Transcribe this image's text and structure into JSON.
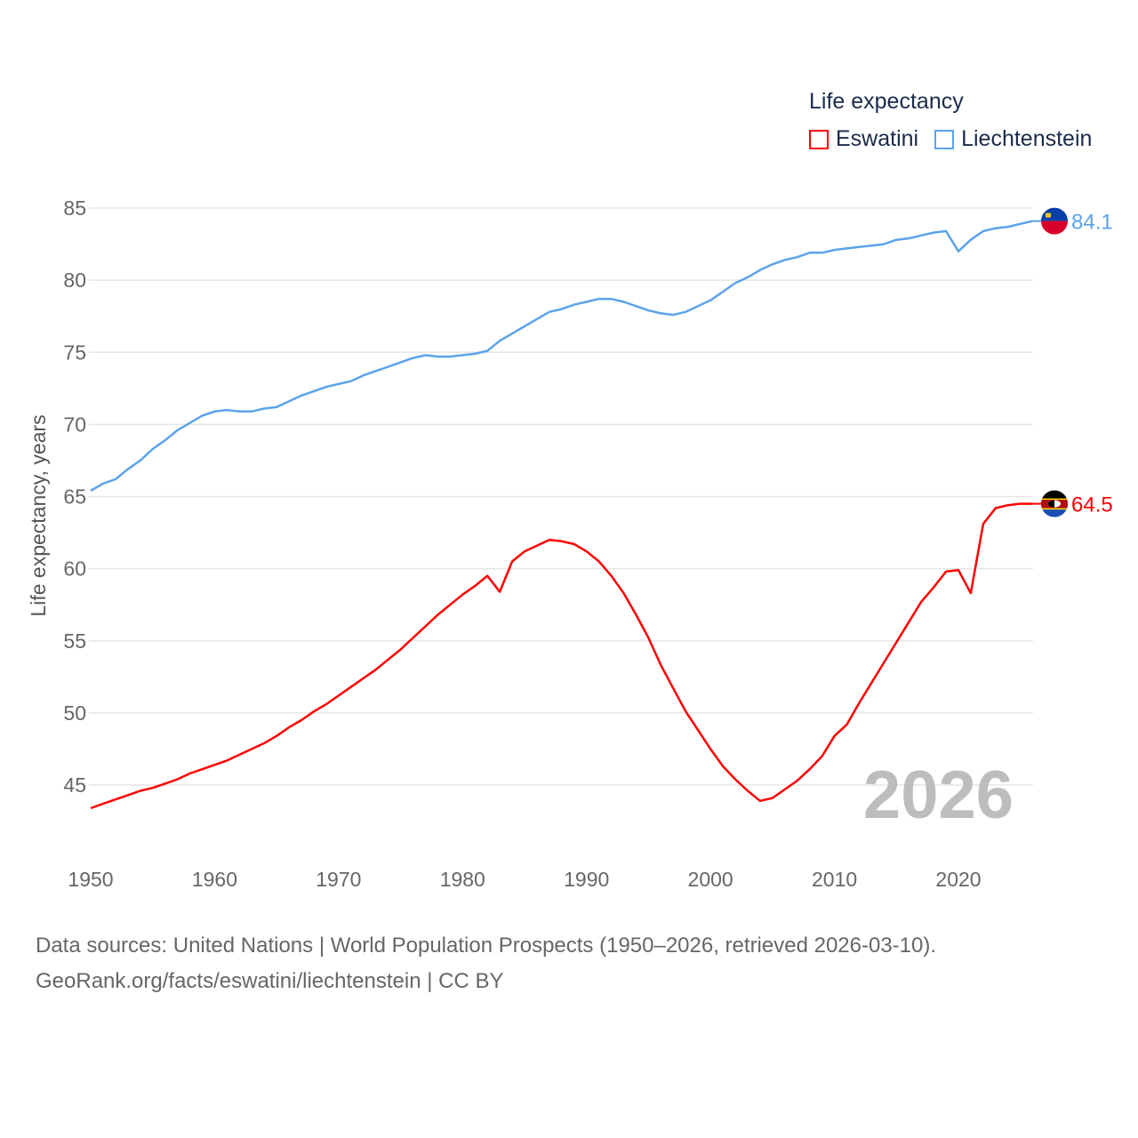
{
  "chart_data": {
    "type": "line",
    "title": "Life expectancy",
    "ylabel": "Life expectancy, years",
    "xlabel": "",
    "xlim": [
      1950,
      2026
    ],
    "ylim": [
      42,
      85
    ],
    "x_ticks": [
      "1950",
      "1960",
      "1970",
      "1980",
      "1990",
      "2000",
      "2010",
      "2020"
    ],
    "y_ticks": [
      "85",
      "80",
      "75",
      "70",
      "65",
      "60",
      "55",
      "50",
      "45"
    ],
    "grid": true,
    "legend_placement": "top-right",
    "year_watermark": "2026",
    "x": [
      1950,
      1951,
      1952,
      1953,
      1954,
      1955,
      1956,
      1957,
      1958,
      1959,
      1960,
      1961,
      1962,
      1963,
      1964,
      1965,
      1966,
      1967,
      1968,
      1969,
      1970,
      1971,
      1972,
      1973,
      1974,
      1975,
      1976,
      1977,
      1978,
      1979,
      1980,
      1981,
      1982,
      1983,
      1984,
      1985,
      1986,
      1987,
      1988,
      1989,
      1990,
      1991,
      1992,
      1993,
      1994,
      1995,
      1996,
      1997,
      1998,
      1999,
      2000,
      2001,
      2002,
      2003,
      2004,
      2005,
      2006,
      2007,
      2008,
      2009,
      2010,
      2011,
      2012,
      2013,
      2014,
      2015,
      2016,
      2017,
      2018,
      2019,
      2020,
      2021,
      2022,
      2023,
      2024,
      2025,
      2026
    ],
    "series": [
      {
        "name": "Eswatini",
        "color": "#ff0000",
        "end_label": "64.5",
        "values": [
          43.4,
          43.7,
          44.0,
          44.3,
          44.6,
          44.8,
          45.1,
          45.4,
          45.8,
          46.1,
          46.4,
          46.7,
          47.1,
          47.5,
          47.9,
          48.4,
          49.0,
          49.5,
          50.1,
          50.6,
          51.2,
          51.8,
          52.4,
          53.0,
          53.7,
          54.4,
          55.2,
          56.0,
          56.8,
          57.5,
          58.2,
          58.8,
          59.5,
          58.4,
          60.5,
          61.2,
          61.6,
          62.0,
          61.9,
          61.7,
          61.2,
          60.5,
          59.5,
          58.3,
          56.8,
          55.2,
          53.3,
          51.7,
          50.1,
          48.8,
          47.5,
          46.3,
          45.4,
          44.6,
          43.9,
          44.1,
          44.7,
          45.3,
          46.1,
          47.0,
          48.4,
          49.2,
          50.7,
          52.1,
          53.5,
          54.9,
          56.3,
          57.7,
          58.7,
          59.8,
          59.9,
          58.3,
          63.1,
          64.2,
          64.4,
          64.5,
          64.5
        ]
      },
      {
        "name": "Liechtenstein",
        "color": "#5ba3ea",
        "end_label": "84.1",
        "values": [
          65.4,
          65.9,
          66.2,
          66.9,
          67.5,
          68.3,
          68.9,
          69.6,
          70.1,
          70.6,
          70.9,
          71.0,
          70.9,
          70.9,
          71.1,
          71.2,
          71.6,
          72.0,
          72.3,
          72.6,
          72.8,
          73.0,
          73.4,
          73.7,
          74.0,
          74.3,
          74.6,
          74.8,
          74.7,
          74.7,
          74.8,
          74.9,
          75.1,
          75.8,
          76.3,
          76.8,
          77.3,
          77.8,
          78.0,
          78.3,
          78.5,
          78.7,
          78.7,
          78.5,
          78.2,
          77.9,
          77.7,
          77.6,
          77.8,
          78.2,
          78.6,
          79.2,
          79.8,
          80.2,
          80.7,
          81.1,
          81.4,
          81.6,
          81.9,
          81.9,
          82.1,
          82.2,
          82.3,
          82.4,
          82.5,
          82.8,
          82.9,
          83.1,
          83.3,
          83.4,
          82.0,
          82.8,
          83.4,
          83.6,
          83.7,
          83.9,
          84.1
        ]
      }
    ]
  },
  "footer": {
    "line1": "Data sources: United Nations | World Population Prospects (1950–2026, retrieved 2026-03-10).",
    "line2": "GeoRank.org/facts/eswatini/liechtenstein | CC BY"
  }
}
